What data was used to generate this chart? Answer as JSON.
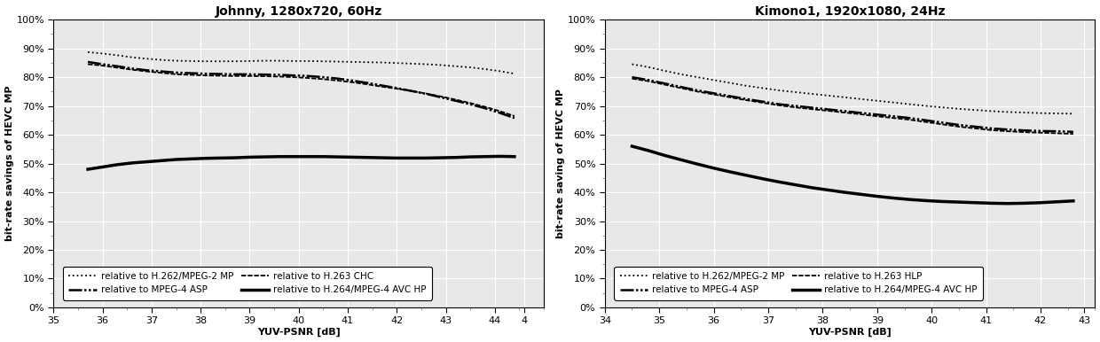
{
  "chart1": {
    "title": "Johnny, 1280x720, 60Hz",
    "xlabel": "YUV-PSNR [dB]",
    "ylabel": "bit-rate savings of HEVC MP",
    "xlim": [
      35,
      45
    ],
    "ylim": [
      0,
      1.0
    ],
    "xticks": [
      35,
      36,
      37,
      38,
      39,
      40,
      41,
      42,
      43,
      44,
      44.6
    ],
    "xticklabels": [
      "35",
      "36",
      "37",
      "38",
      "39",
      "40",
      "41",
      "42",
      "43",
      "44",
      "4"
    ],
    "yticks": [
      0.0,
      0.1,
      0.2,
      0.3,
      0.4,
      0.5,
      0.6,
      0.7,
      0.8,
      0.9,
      1.0
    ],
    "series": {
      "mpeg2mp": {
        "label": "relative to H.262/MPEG-2 MP",
        "linestyle": "dotted",
        "color": "#000000",
        "linewidth": 1.3,
        "x": [
          35.7,
          36.0,
          36.3,
          36.6,
          36.9,
          37.2,
          37.5,
          37.8,
          38.1,
          38.4,
          38.7,
          39.0,
          39.3,
          39.6,
          39.9,
          40.2,
          40.5,
          40.8,
          41.1,
          41.4,
          41.7,
          42.0,
          42.3,
          42.6,
          42.9,
          43.2,
          43.5,
          43.8,
          44.1,
          44.4
        ],
        "y": [
          0.887,
          0.882,
          0.876,
          0.869,
          0.864,
          0.86,
          0.857,
          0.856,
          0.855,
          0.855,
          0.855,
          0.856,
          0.857,
          0.857,
          0.856,
          0.856,
          0.855,
          0.854,
          0.853,
          0.852,
          0.851,
          0.849,
          0.847,
          0.845,
          0.842,
          0.838,
          0.834,
          0.828,
          0.821,
          0.812
        ]
      },
      "mpeg4asp": {
        "label": "relative to MPEG-4 ASP",
        "linestyle": [
          0,
          [
            6,
            1,
            1,
            1,
            1,
            1
          ]
        ],
        "color": "#000000",
        "linewidth": 1.8,
        "x": [
          35.7,
          36.0,
          36.3,
          36.6,
          36.9,
          37.2,
          37.5,
          37.8,
          38.1,
          38.4,
          38.7,
          39.0,
          39.3,
          39.6,
          39.9,
          40.2,
          40.5,
          40.8,
          41.1,
          41.4,
          41.7,
          42.0,
          42.3,
          42.6,
          42.9,
          43.2,
          43.5,
          43.8,
          44.1,
          44.4
        ],
        "y": [
          0.853,
          0.845,
          0.838,
          0.83,
          0.824,
          0.82,
          0.816,
          0.814,
          0.812,
          0.811,
          0.81,
          0.81,
          0.809,
          0.808,
          0.806,
          0.804,
          0.8,
          0.795,
          0.788,
          0.78,
          0.771,
          0.762,
          0.752,
          0.742,
          0.73,
          0.718,
          0.706,
          0.692,
          0.676,
          0.658
        ]
      },
      "h263chc": {
        "label": "relative to H.263 CHC",
        "linestyle": [
          0,
          [
            3,
            1,
            3,
            1
          ]
        ],
        "color": "#000000",
        "linewidth": 1.3,
        "x": [
          35.7,
          36.0,
          36.3,
          36.6,
          36.9,
          37.2,
          37.5,
          37.8,
          38.1,
          38.4,
          38.7,
          39.0,
          39.3,
          39.6,
          39.9,
          40.2,
          40.5,
          40.8,
          41.1,
          41.4,
          41.7,
          42.0,
          42.3,
          42.6,
          42.9,
          43.2,
          43.5,
          43.8,
          44.1,
          44.4
        ],
        "y": [
          0.845,
          0.84,
          0.833,
          0.826,
          0.82,
          0.815,
          0.81,
          0.808,
          0.806,
          0.805,
          0.804,
          0.804,
          0.803,
          0.802,
          0.8,
          0.797,
          0.793,
          0.788,
          0.782,
          0.775,
          0.767,
          0.76,
          0.752,
          0.743,
          0.733,
          0.722,
          0.71,
          0.697,
          0.682,
          0.665
        ]
      },
      "h264avc": {
        "label": "relative to H.264/MPEG-4 AVC HP",
        "linestyle": "solid",
        "color": "#000000",
        "linewidth": 2.5,
        "x": [
          35.7,
          36.0,
          36.3,
          36.6,
          36.9,
          37.2,
          37.5,
          37.8,
          38.1,
          38.4,
          38.7,
          39.0,
          39.3,
          39.6,
          39.9,
          40.2,
          40.5,
          40.8,
          41.1,
          41.4,
          41.7,
          42.0,
          42.3,
          42.6,
          42.9,
          43.2,
          43.5,
          43.8,
          44.1,
          44.4
        ],
        "y": [
          0.48,
          0.488,
          0.496,
          0.502,
          0.506,
          0.51,
          0.514,
          0.516,
          0.518,
          0.519,
          0.52,
          0.522,
          0.523,
          0.524,
          0.524,
          0.524,
          0.524,
          0.523,
          0.522,
          0.521,
          0.52,
          0.519,
          0.519,
          0.519,
          0.52,
          0.521,
          0.523,
          0.524,
          0.525,
          0.524
        ]
      }
    },
    "legend_entries": [
      {
        "label": "relative to H.262/MPEG-2 MP",
        "linestyle": "dotted",
        "linewidth": 1.3
      },
      {
        "label": "relative to MPEG-4 ASP",
        "linestyle_key": "dashdotdot",
        "linewidth": 1.8
      },
      {
        "label": "relative to H.263 CHC",
        "linestyle_key": "dashdash",
        "linewidth": 1.3
      },
      {
        "label": "relative to H.264/MPEG-4 AVC HP",
        "linestyle": "solid",
        "linewidth": 2.5
      }
    ]
  },
  "chart2": {
    "title": "Kimono1, 1920x1080, 24Hz",
    "xlabel": "YUV-PSNR [dB]",
    "ylabel": "bit-rate saving of HEVC MP",
    "xlim": [
      34,
      43
    ],
    "ylim": [
      0,
      1.0
    ],
    "xticks": [
      34,
      35,
      36,
      37,
      38,
      39,
      40,
      41,
      42,
      42.8
    ],
    "xticklabels": [
      "34",
      "35",
      "36",
      "37",
      "38",
      "39",
      "40",
      "41",
      "42",
      "43"
    ],
    "yticks": [
      0.0,
      0.1,
      0.2,
      0.3,
      0.4,
      0.5,
      0.6,
      0.7,
      0.8,
      0.9,
      1.0
    ],
    "series": {
      "mpeg2mp": {
        "label": "relative to H.262/MPEG-2 MP",
        "linestyle": "dotted",
        "color": "#000000",
        "linewidth": 1.3,
        "x": [
          34.5,
          34.8,
          35.1,
          35.4,
          35.7,
          36.0,
          36.3,
          36.6,
          36.9,
          37.2,
          37.5,
          37.8,
          38.1,
          38.4,
          38.7,
          39.0,
          39.3,
          39.6,
          39.9,
          40.2,
          40.5,
          40.8,
          41.1,
          41.4,
          41.7,
          42.0,
          42.3,
          42.6
        ],
        "y": [
          0.845,
          0.835,
          0.822,
          0.81,
          0.8,
          0.79,
          0.78,
          0.77,
          0.762,
          0.754,
          0.748,
          0.742,
          0.736,
          0.73,
          0.724,
          0.718,
          0.712,
          0.706,
          0.7,
          0.695,
          0.69,
          0.686,
          0.682,
          0.679,
          0.677,
          0.675,
          0.674,
          0.673
        ]
      },
      "mpeg4asp": {
        "label": "relative to MPEG-4 ASP",
        "linestyle": [
          0,
          [
            6,
            1,
            1,
            1,
            1,
            1
          ]
        ],
        "color": "#000000",
        "linewidth": 1.8,
        "x": [
          34.5,
          34.8,
          35.1,
          35.4,
          35.7,
          36.0,
          36.3,
          36.6,
          36.9,
          37.2,
          37.5,
          37.8,
          38.1,
          38.4,
          38.7,
          39.0,
          39.3,
          39.6,
          39.9,
          40.2,
          40.5,
          40.8,
          41.1,
          41.4,
          41.7,
          42.0,
          42.3,
          42.6
        ],
        "y": [
          0.8,
          0.79,
          0.778,
          0.766,
          0.754,
          0.744,
          0.734,
          0.724,
          0.715,
          0.706,
          0.7,
          0.694,
          0.688,
          0.682,
          0.676,
          0.67,
          0.664,
          0.658,
          0.65,
          0.642,
          0.634,
          0.628,
          0.622,
          0.618,
          0.615,
          0.613,
          0.612,
          0.61
        ]
      },
      "h263hlp": {
        "label": "relative to H.263 HLP",
        "linestyle": [
          0,
          [
            3,
            1,
            3,
            1
          ]
        ],
        "color": "#000000",
        "linewidth": 1.3,
        "x": [
          34.5,
          34.8,
          35.1,
          35.4,
          35.7,
          36.0,
          36.3,
          36.6,
          36.9,
          37.2,
          37.5,
          37.8,
          38.1,
          38.4,
          38.7,
          39.0,
          39.3,
          39.6,
          39.9,
          40.2,
          40.5,
          40.8,
          41.1,
          41.4,
          41.7,
          42.0,
          42.3,
          42.6
        ],
        "y": [
          0.795,
          0.786,
          0.774,
          0.762,
          0.75,
          0.74,
          0.73,
          0.72,
          0.711,
          0.702,
          0.695,
          0.689,
          0.683,
          0.677,
          0.671,
          0.664,
          0.658,
          0.652,
          0.644,
          0.636,
          0.628,
          0.622,
          0.616,
          0.612,
          0.609,
          0.607,
          0.605,
          0.603
        ]
      },
      "h264avc": {
        "label": "relative to H.264/MPEG-4 AVC HP",
        "linestyle": "solid",
        "color": "#000000",
        "linewidth": 2.5,
        "x": [
          34.5,
          34.8,
          35.1,
          35.4,
          35.7,
          36.0,
          36.3,
          36.6,
          36.9,
          37.2,
          37.5,
          37.8,
          38.1,
          38.4,
          38.7,
          39.0,
          39.3,
          39.6,
          39.9,
          40.2,
          40.5,
          40.8,
          41.1,
          41.4,
          41.7,
          42.0,
          42.3,
          42.6
        ],
        "y": [
          0.56,
          0.545,
          0.528,
          0.513,
          0.498,
          0.484,
          0.471,
          0.459,
          0.447,
          0.436,
          0.426,
          0.416,
          0.408,
          0.4,
          0.393,
          0.386,
          0.38,
          0.375,
          0.371,
          0.368,
          0.366,
          0.364,
          0.362,
          0.361,
          0.362,
          0.364,
          0.367,
          0.37
        ]
      }
    },
    "legend_entries": [
      {
        "label": "relative to H.262/MPEG-2 MP",
        "linestyle": "dotted",
        "linewidth": 1.3
      },
      {
        "label": "relative to MPEG-4 ASP",
        "linestyle_key": "dashdotdot",
        "linewidth": 1.8
      },
      {
        "label": "relative to H.263 HLP",
        "linestyle_key": "dashdash",
        "linewidth": 1.3
      },
      {
        "label": "relative to H.264/MPEG-4 AVC HP",
        "linestyle": "solid",
        "linewidth": 2.5
      }
    ]
  },
  "bg_color": "#ffffff",
  "plot_bg_color": "#e8e8e8",
  "grid_color": "#ffffff",
  "title_fontsize": 10,
  "label_fontsize": 8,
  "tick_fontsize": 8,
  "legend_fontsize": 7.5
}
